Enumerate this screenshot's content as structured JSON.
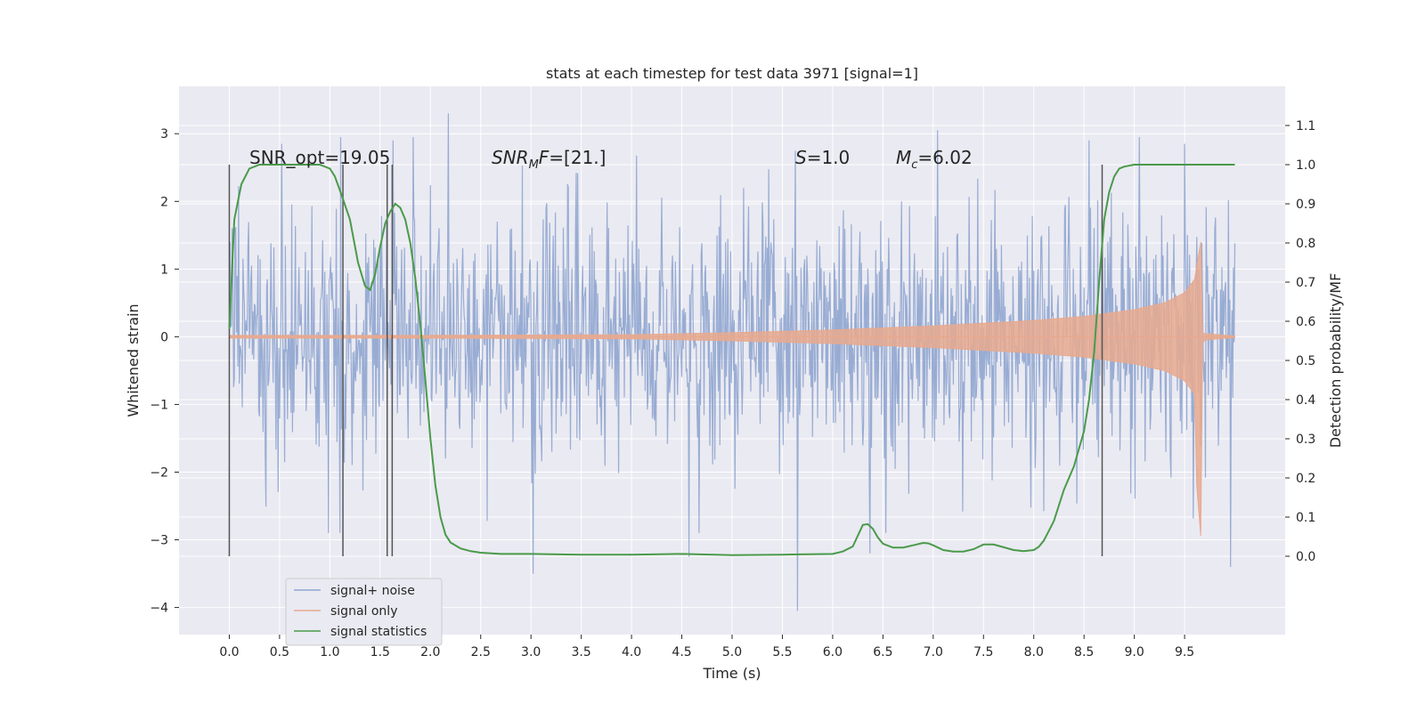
{
  "chart_data": {
    "type": "line",
    "title": "stats at each timestep for test data 3971 [signal=1]",
    "xlabel": "Time (s)",
    "ylabel": "Whitened strain",
    "y2label": "Detection probability/MF",
    "xlim": [
      -0.5,
      10.5
    ],
    "ylim": [
      -4.4,
      3.7
    ],
    "y2lim": [
      -0.2,
      1.2
    ],
    "x_ticks": [
      "0.0",
      "0.5",
      "1.0",
      "1.5",
      "2.0",
      "2.5",
      "3.0",
      "3.5",
      "4.0",
      "4.5",
      "5.0",
      "5.5",
      "6.0",
      "6.5",
      "7.0",
      "7.5",
      "8.0",
      "8.5",
      "9.0",
      "9.5"
    ],
    "x_tick_values": [
      0,
      0.5,
      1,
      1.5,
      2,
      2.5,
      3,
      3.5,
      4,
      4.5,
      5,
      5.5,
      6,
      6.5,
      7,
      7.5,
      8,
      8.5,
      9,
      9.5
    ],
    "y_ticks": [
      "3",
      "2",
      "1",
      "0",
      "−1",
      "−2",
      "−3",
      "−4"
    ],
    "y_tick_values": [
      3,
      2,
      1,
      0,
      -1,
      -2,
      -3,
      -4
    ],
    "y2_ticks": [
      "0.0",
      "0.1",
      "0.2",
      "0.3",
      "0.4",
      "0.5",
      "0.6",
      "0.7",
      "0.8",
      "0.9",
      "1.0",
      "1.1"
    ],
    "y2_tick_values": [
      0,
      0.1,
      0.2,
      0.3,
      0.4,
      0.5,
      0.6,
      0.7,
      0.8,
      0.9,
      1.0,
      1.1
    ],
    "grid": true,
    "legend_position": "lower-left",
    "annotations": {
      "snr_opt": "SNR_opt=19.05",
      "snr_mf_main": "SNR",
      "snr_mf_sub": "M",
      "snr_mf_rest": "F=[21.]",
      "s_main": "S",
      "s_rest": "=1.0",
      "mc_main": "M",
      "mc_sub": "c",
      "mc_rest": "=6.02"
    },
    "vertical_markers_x": [
      0.0,
      1.13,
      1.57,
      1.62,
      8.68
    ],
    "series": [
      {
        "name": "signal+ noise",
        "color": "#8fa5cf",
        "description_stats": {
          "t_start": 0.0,
          "t_end": 10.0,
          "typical_amplitude": 1.0
        },
        "peaks": [
          [
            0.52,
            2.85
          ],
          [
            1.11,
            2.95
          ],
          [
            1.63,
            2.9
          ],
          [
            1.83,
            2.95
          ],
          [
            2.18,
            3.3
          ],
          [
            3.02,
            -3.5
          ],
          [
            4.57,
            -3.25
          ],
          [
            5.65,
            -4.05
          ],
          [
            6.37,
            -3.2
          ],
          [
            7.04,
            3.05
          ],
          [
            8.55,
            2.9
          ],
          [
            9.05,
            2.95
          ],
          [
            9.5,
            2.85
          ],
          [
            9.96,
            -3.4
          ]
        ]
      },
      {
        "name": "signal only",
        "color": "#e8a98e",
        "envelope": [
          [
            0.0,
            0.02
          ],
          [
            2.0,
            0.02
          ],
          [
            4.0,
            0.03
          ],
          [
            5.0,
            0.06
          ],
          [
            6.0,
            0.1
          ],
          [
            7.0,
            0.16
          ],
          [
            8.0,
            0.24
          ],
          [
            8.5,
            0.3
          ],
          [
            9.0,
            0.4
          ],
          [
            9.3,
            0.5
          ],
          [
            9.5,
            0.65
          ],
          [
            9.6,
            0.85
          ],
          [
            9.66,
            1.4
          ],
          [
            9.68,
            0.05
          ],
          [
            10.0,
            0.01
          ]
        ]
      },
      {
        "name": "signal statistics",
        "color": "#4a9a4a",
        "x": [
          0.0,
          0.05,
          0.12,
          0.2,
          0.3,
          0.5,
          0.7,
          0.9,
          1.0,
          1.05,
          1.12,
          1.2,
          1.28,
          1.35,
          1.4,
          1.45,
          1.5,
          1.55,
          1.6,
          1.65,
          1.7,
          1.75,
          1.8,
          1.85,
          1.9,
          1.95,
          2.0,
          2.05,
          2.1,
          2.15,
          2.2,
          2.3,
          2.4,
          2.5,
          2.7,
          3.0,
          3.5,
          4.0,
          4.5,
          5.0,
          5.5,
          6.0,
          6.1,
          6.2,
          6.3,
          6.35,
          6.4,
          6.45,
          6.5,
          6.6,
          6.7,
          6.8,
          6.9,
          6.95,
          7.0,
          7.1,
          7.2,
          7.3,
          7.4,
          7.5,
          7.6,
          7.7,
          7.8,
          7.9,
          8.0,
          8.05,
          8.1,
          8.15,
          8.2,
          8.3,
          8.4,
          8.5,
          8.55,
          8.6,
          8.65,
          8.7,
          8.75,
          8.8,
          8.85,
          8.9,
          9.0,
          9.2,
          9.5,
          9.8,
          10.0
        ],
        "y": [
          0.58,
          0.86,
          0.95,
          0.99,
          1.0,
          1.0,
          1.0,
          1.0,
          0.99,
          0.97,
          0.92,
          0.86,
          0.75,
          0.69,
          0.68,
          0.72,
          0.79,
          0.85,
          0.88,
          0.9,
          0.89,
          0.86,
          0.8,
          0.71,
          0.59,
          0.45,
          0.3,
          0.18,
          0.1,
          0.055,
          0.035,
          0.02,
          0.013,
          0.009,
          0.006,
          0.006,
          0.004,
          0.004,
          0.006,
          0.003,
          0.004,
          0.006,
          0.012,
          0.025,
          0.08,
          0.082,
          0.07,
          0.048,
          0.032,
          0.022,
          0.022,
          0.028,
          0.034,
          0.033,
          0.028,
          0.016,
          0.012,
          0.012,
          0.018,
          0.03,
          0.03,
          0.023,
          0.016,
          0.013,
          0.016,
          0.024,
          0.04,
          0.065,
          0.09,
          0.17,
          0.23,
          0.32,
          0.4,
          0.52,
          0.7,
          0.86,
          0.93,
          0.97,
          0.99,
          0.995,
          1.0,
          1.0,
          1.0,
          1.0,
          1.0
        ]
      }
    ]
  }
}
